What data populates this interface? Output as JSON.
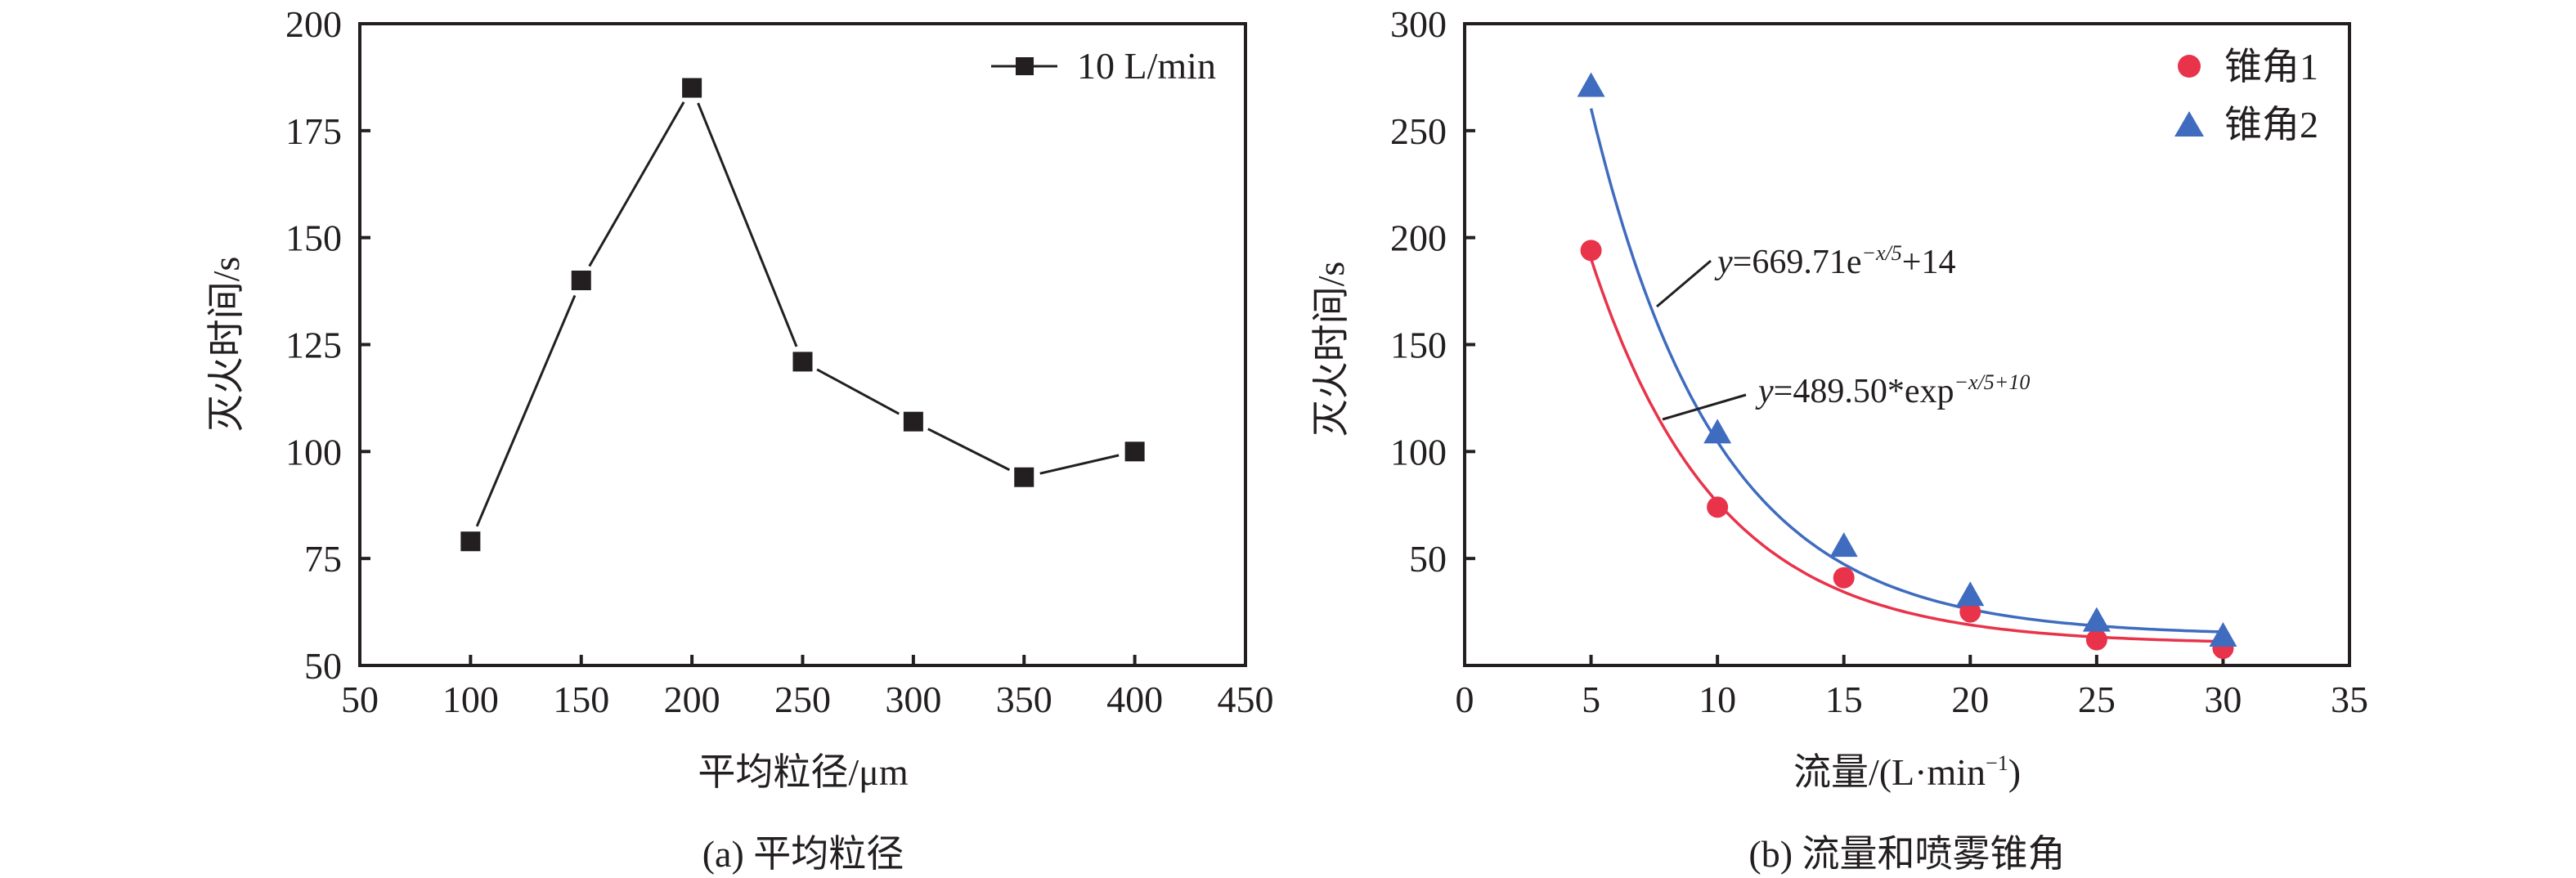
{
  "chart_data": [
    {
      "type": "line",
      "panel": "a",
      "caption": "(a) 平均粒径",
      "xlabel": "平均粒径/μm",
      "ylabel": "灭火时间/s",
      "xlim": [
        50,
        450
      ],
      "ylim": [
        50,
        200
      ],
      "xticks": [
        50,
        100,
        150,
        200,
        250,
        300,
        350,
        400,
        450
      ],
      "yticks": [
        50,
        75,
        100,
        125,
        150,
        175,
        200
      ],
      "grid": false,
      "legend_position": "top-right",
      "series": [
        {
          "name": "10 L/min",
          "marker": "square",
          "color": "#231f20",
          "x": [
            100,
            150,
            200,
            250,
            300,
            350,
            400
          ],
          "y": [
            79,
            140,
            185,
            121,
            107,
            94,
            100
          ]
        }
      ]
    },
    {
      "type": "scatter",
      "panel": "b",
      "caption": "(b) 流量和喷雾锥角",
      "xlabel": "流量/(L·min⁻¹)",
      "xlabel_main": "流量/(L·min",
      "xlabel_sup": "−1",
      "xlabel_end": ")",
      "ylabel": "灭火时间/s",
      "xlim": [
        0,
        35
      ],
      "ylim": [
        0,
        300
      ],
      "xticks": [
        0,
        5,
        10,
        15,
        20,
        25,
        30,
        35
      ],
      "yticks": [
        50,
        100,
        150,
        200,
        250,
        300
      ],
      "grid": false,
      "legend_position": "top-right",
      "series": [
        {
          "name": "锥角1",
          "marker": "circle",
          "color": "#e8334a",
          "x": [
            5,
            10,
            15,
            20,
            25,
            30
          ],
          "y": [
            194,
            74,
            41,
            25,
            12,
            8
          ],
          "fit": {
            "a": 489.5,
            "b": 5,
            "c": 10,
            "x_range": [
              5,
              30
            ]
          }
        },
        {
          "name": "锥角2",
          "marker": "triangle",
          "color": "#3f6cbf",
          "x": [
            5,
            10,
            15,
            20,
            25,
            30
          ],
          "y": [
            270,
            108,
            55,
            32,
            20,
            13
          ],
          "fit": {
            "a": 669.71,
            "b": 5,
            "c": 14,
            "x_range": [
              5,
              30
            ]
          }
        }
      ],
      "annotations": [
        {
          "series": "锥角2",
          "prefix": "y",
          "main": "=669.71e",
          "sup": "−x/5",
          "tail": "+14"
        },
        {
          "series": "锥角1",
          "prefix": "y",
          "main": "=489.50*exp",
          "sup": "−x/5+10",
          "tail": ""
        }
      ]
    }
  ]
}
